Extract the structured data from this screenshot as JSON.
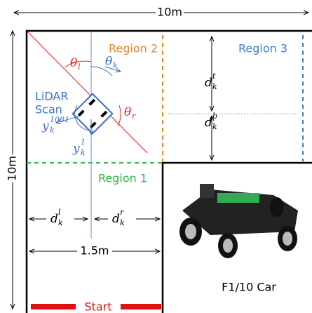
{
  "dimensions": {
    "top": "10m",
    "left": "10m",
    "bottom_width": "1.5m"
  },
  "regions": {
    "region2": "Region 2",
    "region3": "Region 3",
    "region1": "Region 1"
  },
  "lidar": {
    "line1": "LiDAR",
    "line2": "Scan"
  },
  "symbols": {
    "theta_l": {
      "base": "θ",
      "sub": "l"
    },
    "theta_k": {
      "base": "θ",
      "sub": "k"
    },
    "theta_r": {
      "base": "θ",
      "sub": "r"
    },
    "d_t": {
      "base": "d",
      "sub": "k",
      "sup": "t"
    },
    "d_b": {
      "base": "d",
      "sub": "k",
      "sup": "b"
    },
    "y_1081": {
      "base": "y",
      "sub": "k",
      "sup": "1081"
    },
    "y_1": {
      "base": "y",
      "sub": "k",
      "sup": "1"
    },
    "d_l": {
      "base": "d",
      "sub": "k",
      "sup": "l"
    },
    "d_r": {
      "base": "d",
      "sub": "k",
      "sup": "r"
    }
  },
  "car_label": "F1/10 Car",
  "start": "Start"
}
